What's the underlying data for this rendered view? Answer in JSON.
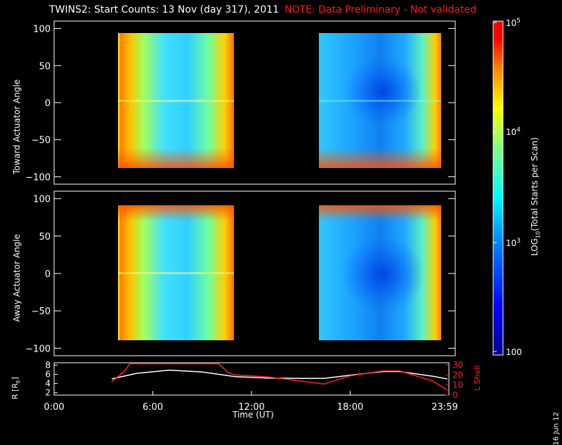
{
  "title": {
    "main": "TWINS2: Start Counts: 13 Nov (day 317), 2011",
    "note": "NOTE: Data Preliminary - Not validated"
  },
  "date_stamp": "16 Jun 12",
  "colors": {
    "bg": "#000000",
    "axis": "#ffffff",
    "note": "#ff1a1a",
    "lshell": "#ff2020"
  },
  "colorbar": {
    "label": "LOG10(Total Starts per Scan)",
    "ticks": [
      "10^5",
      "10^4",
      "10^3",
      "100"
    ],
    "ticks_display": [
      {
        "base": "10",
        "exp": "5"
      },
      {
        "base": "10",
        "exp": "4"
      },
      {
        "base": "10",
        "exp": "3"
      },
      {
        "base": "100",
        "exp": ""
      }
    ],
    "colormap": [
      "#00008f",
      "#0000ff",
      "#0080ff",
      "#00ffff",
      "#80ff80",
      "#ffff00",
      "#ff8000",
      "#ff0000",
      "#ff0000"
    ]
  },
  "panels": [
    {
      "name": "Toward Actuator Angle",
      "ylabel": "Toward Actuator Angle",
      "yticks": [
        "100",
        "50",
        "0",
        "−50",
        "−100"
      ],
      "ylim": [
        -110,
        110
      ]
    },
    {
      "name": "Away Actuator Angle",
      "ylabel": "Away Actuator Angle",
      "yticks": [
        "100",
        "50",
        "0",
        "−50",
        "−100"
      ],
      "ylim": [
        -110,
        110
      ]
    }
  ],
  "ephemeris": {
    "ylabel_left": "R [RE]",
    "ylabel_right": "L Shell",
    "left_ticks": [
      "8",
      "6",
      "4",
      "2"
    ],
    "right_ticks": [
      "30",
      "20",
      "10",
      "0"
    ]
  },
  "xaxis": {
    "label": "Time (UT)",
    "ticks": [
      "0:00",
      "6:00",
      "12:00",
      "18:00",
      "23:59"
    ]
  },
  "chart_data": {
    "type": "heatmap",
    "title": "TWINS2: Start Counts: 13 Nov (day 317), 2011",
    "xlabel": "Time (UT)",
    "xlim_hours": [
      0,
      24
    ],
    "data_intervals_hours": [
      [
        3.5,
        10.8
      ],
      [
        16.4,
        23.9
      ]
    ],
    "colorbar_range": [
      100,
      100000
    ],
    "colorbar_scale": "log",
    "panels": [
      {
        "ylabel": "Toward Actuator Angle",
        "ylim": [
          -110,
          110
        ],
        "data_angle_range": [
          -88,
          90
        ]
      },
      {
        "ylabel": "Away Actuator Angle",
        "ylim": [
          -110,
          110
        ],
        "data_angle_range": [
          -88,
          90
        ]
      }
    ],
    "lines": [
      {
        "name": "R",
        "axis": "left",
        "ylim": [
          1.5,
          8.5
        ],
        "x": [
          3.5,
          5,
          7,
          9,
          11,
          13,
          15,
          16.4,
          18,
          20,
          21,
          23,
          23.9
        ],
        "y": [
          5.0,
          6.2,
          6.9,
          6.5,
          5.5,
          5.2,
          5.1,
          5.1,
          5.8,
          6.6,
          6.6,
          5.6,
          5.0
        ]
      },
      {
        "name": "L Shell",
        "axis": "right",
        "ylim": [
          0,
          32
        ],
        "x": [
          3.5,
          4.3,
          4.6,
          10,
          10.6,
          11,
          13,
          16.4,
          18,
          20,
          21,
          23,
          23.9
        ],
        "y": [
          13,
          24,
          31,
          31,
          22,
          20,
          18,
          11,
          19,
          24,
          24,
          14,
          5
        ]
      }
    ]
  }
}
